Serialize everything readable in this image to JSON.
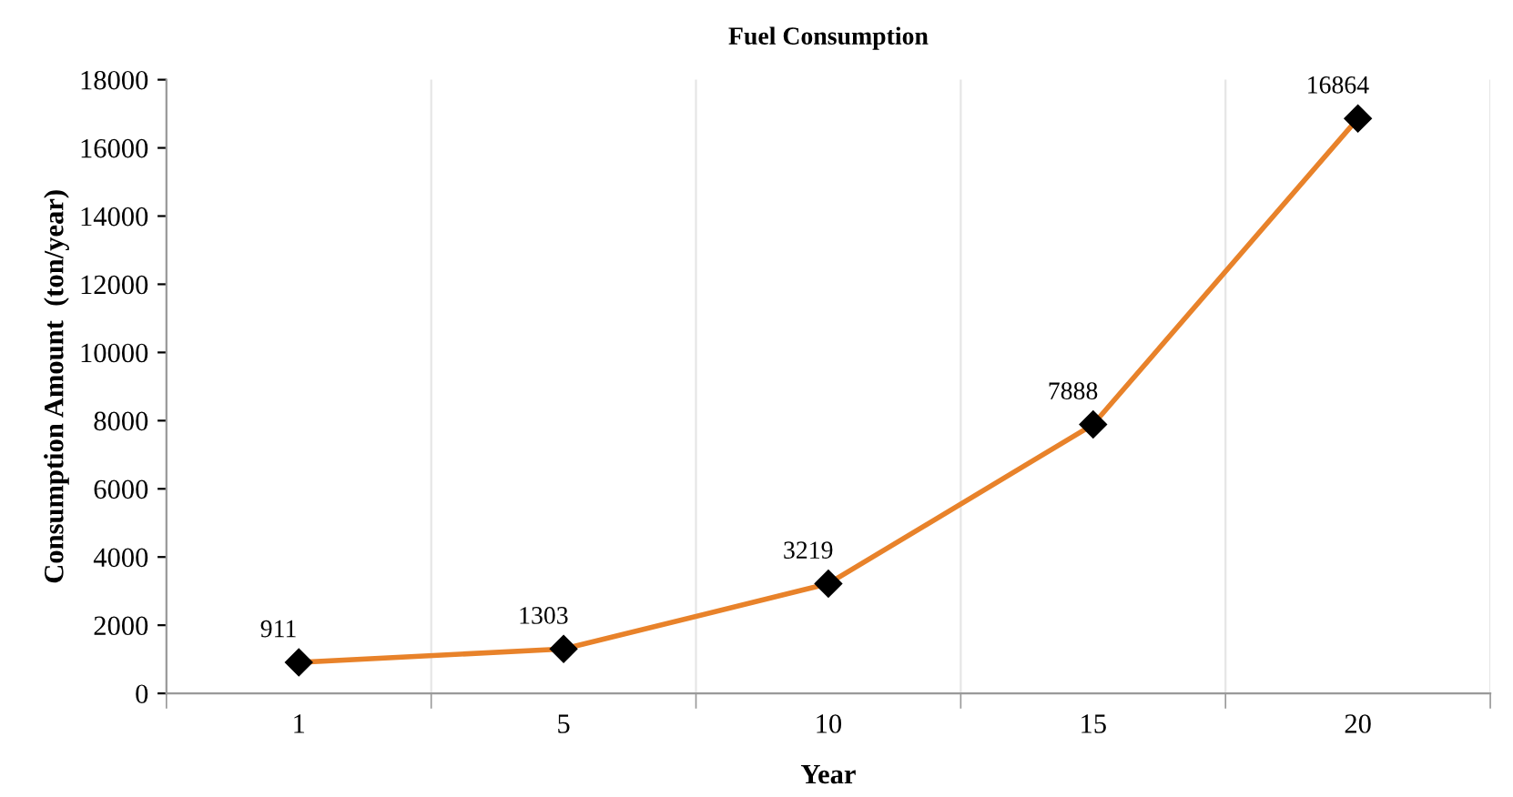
{
  "chart_data": {
    "type": "line",
    "title": "Fuel Consumption",
    "xlabel": "Year",
    "ylabel": "Consumption Amount  (ton/year)",
    "categories": [
      "1",
      "5",
      "10",
      "15",
      "20"
    ],
    "series": [
      {
        "color": "#e8822a",
        "values": [
          911,
          1303,
          3219,
          7888,
          16864
        ]
      }
    ],
    "ylim": [
      0,
      18000
    ],
    "yticks": [
      0,
      2000,
      4000,
      6000,
      8000,
      10000,
      12000,
      14000,
      16000,
      18000
    ],
    "grid": "x",
    "marker": "diamond",
    "line_style": "solid",
    "data_labels": true,
    "legend": false
  }
}
